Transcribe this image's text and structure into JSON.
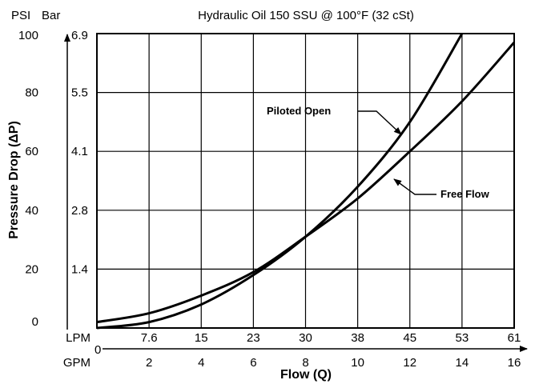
{
  "chart_data": {
    "type": "line",
    "title": "Hydraulic Oil 150 SSU @ 100°F (32 cSt)",
    "xlabel": "Flow (Q)",
    "ylabel": "Pressure Drop (ΔP)",
    "y_units": {
      "primary": "PSI",
      "secondary": "Bar"
    },
    "x_units": {
      "primary": "LPM",
      "secondary": "GPM"
    },
    "xlim": [
      0,
      16
    ],
    "ylim": [
      0,
      100
    ],
    "grid": true,
    "y_ticks_psi": [
      "0",
      "20",
      "40",
      "60",
      "80",
      "100"
    ],
    "y_ticks_bar": [
      "1.4",
      "2.8",
      "4.1",
      "5.5",
      "6.9"
    ],
    "x_ticks_lpm": [
      "7.6",
      "15",
      "23",
      "30",
      "38",
      "45",
      "53",
      "61"
    ],
    "x_ticks_gpm": [
      "2",
      "4",
      "6",
      "8",
      "10",
      "12",
      "14",
      "16"
    ],
    "x_origin_label": "0",
    "series": [
      {
        "name": "Piloted Open",
        "x": [
          0,
          2,
          4,
          6,
          8,
          10,
          12,
          14
        ],
        "y": [
          0,
          2,
          8,
          18,
          31,
          48,
          70,
          100
        ]
      },
      {
        "name": "Free Flow",
        "x": [
          0,
          2,
          4,
          6,
          8,
          10,
          12,
          14,
          16
        ],
        "y": [
          2,
          5,
          11,
          19,
          31,
          44,
          60,
          77,
          97
        ]
      }
    ],
    "annotations": [
      "Piloted Open",
      "Free Flow"
    ]
  }
}
